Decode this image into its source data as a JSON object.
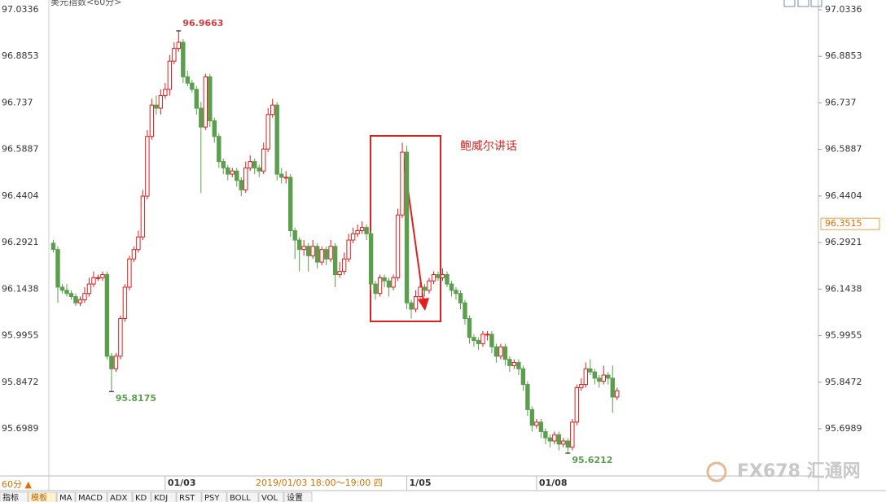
{
  "chart_data": {
    "type": "candlestick",
    "title": "美元指数<60分>",
    "ylim": [
      95.5486,
      97.0647
    ],
    "yticks": [
      97.0336,
      96.8853,
      96.737,
      96.5887,
      96.4404,
      96.2921,
      96.1438,
      95.9955,
      95.8472,
      95.6989
    ],
    "xlim": [
      -1,
      171
    ],
    "xticks": [
      {
        "value": 25,
        "label": "01/03"
      },
      {
        "value": 79,
        "label": "1/05"
      },
      {
        "value": 108,
        "label": "01/08"
      }
    ],
    "up_color": "#e02020",
    "down_color": "#5a9e4e",
    "last_price": 96.3515,
    "annotation": "鲍威尔讲话",
    "tooltip": "2019/01/03 18:00～19:00 四",
    "series": [
      {
        "open": [
          96.29,
          96.27,
          96.15,
          96.14,
          96.13,
          96.12,
          96.1,
          96.11,
          96.13,
          96.16,
          96.18,
          96.18,
          96.19,
          95.93,
          95.89,
          95.93,
          96.05,
          96.15,
          96.24,
          96.27,
          96.31,
          96.44,
          96.63,
          96.73,
          96.72,
          96.76,
          96.78,
          96.87,
          96.91,
          96.93,
          96.82,
          96.8,
          96.78,
          96.72,
          96.66,
          96.82,
          96.68,
          96.63,
          96.55,
          96.53,
          96.51,
          96.52,
          96.49,
          96.46,
          96.53,
          96.55,
          96.53,
          96.52,
          96.59,
          96.7,
          96.73,
          96.51,
          96.5,
          96.5,
          96.33,
          96.3,
          96.27,
          96.28,
          96.25,
          96.28,
          96.23,
          96.27,
          96.24,
          96.28,
          96.19,
          96.2,
          96.24,
          96.3,
          96.32,
          96.33,
          96.34,
          96.32,
          96.16,
          96.13,
          96.18,
          96.17,
          96.15,
          96.18,
          96.38,
          96.58,
          96.1,
          96.08,
          96.12,
          96.15,
          96.14,
          96.17,
          96.19,
          96.18,
          96.19,
          96.16,
          96.14,
          96.13,
          96.1,
          96.05,
          95.99,
          95.98,
          95.97,
          96.0,
          96.0,
          95.96,
          95.93,
          95.96,
          95.92,
          95.9,
          95.91,
          95.89,
          95.84,
          95.76,
          95.71,
          95.72,
          95.69,
          95.67,
          95.66,
          95.68,
          95.65,
          95.66,
          95.64,
          95.72,
          95.83,
          95.84,
          95.89,
          95.88,
          95.86,
          95.85,
          95.87,
          95.86,
          95.8
        ],
        "high": [
          96.3,
          96.28,
          96.16,
          96.16,
          96.14,
          96.13,
          96.12,
          96.15,
          96.18,
          96.2,
          96.19,
          96.2,
          96.2,
          95.94,
          95.94,
          96.06,
          96.16,
          96.25,
          96.28,
          96.33,
          96.46,
          96.65,
          96.75,
          96.76,
          96.78,
          96.8,
          96.89,
          96.93,
          96.9663,
          96.94,
          96.84,
          96.81,
          96.79,
          96.74,
          96.83,
          96.83,
          96.69,
          96.64,
          96.56,
          96.54,
          96.53,
          96.53,
          96.5,
          96.55,
          96.57,
          96.56,
          96.54,
          96.61,
          96.72,
          96.75,
          96.74,
          96.53,
          96.52,
          96.51,
          96.34,
          96.31,
          96.3,
          96.29,
          96.3,
          96.29,
          96.28,
          96.28,
          96.3,
          96.29,
          96.23,
          96.26,
          96.32,
          96.34,
          96.35,
          96.36,
          96.35,
          96.33,
          96.17,
          96.19,
          96.19,
          96.18,
          96.19,
          96.4,
          96.61,
          96.6,
          96.11,
          96.14,
          96.17,
          96.16,
          96.18,
          96.2,
          96.2,
          96.21,
          96.2,
          96.17,
          96.15,
          96.14,
          96.11,
          96.06,
          96.0,
          95.99,
          96.01,
          96.01,
          96.01,
          95.97,
          95.97,
          95.97,
          95.93,
          95.92,
          95.92,
          95.9,
          95.85,
          95.77,
          95.73,
          95.73,
          95.7,
          95.68,
          95.69,
          95.69,
          95.67,
          95.67,
          95.73,
          95.84,
          95.86,
          95.91,
          95.92,
          95.89,
          95.87,
          95.9,
          95.88,
          95.9,
          95.83
        ],
        "low": [
          96.26,
          96.1,
          96.13,
          96.12,
          96.11,
          96.09,
          96.09,
          96.1,
          96.12,
          96.15,
          96.17,
          96.17,
          95.92,
          95.8175,
          95.88,
          95.92,
          96.04,
          96.14,
          96.23,
          96.26,
          96.3,
          96.43,
          96.62,
          96.7,
          96.7,
          96.75,
          96.76,
          96.86,
          96.9,
          96.8,
          96.79,
          96.77,
          96.7,
          96.45,
          96.65,
          96.66,
          96.61,
          96.53,
          96.51,
          96.49,
          96.5,
          96.47,
          96.44,
          96.45,
          96.52,
          96.51,
          96.5,
          96.51,
          96.58,
          96.69,
          96.49,
          96.48,
          96.48,
          96.31,
          96.24,
          96.2,
          96.25,
          96.2,
          96.24,
          96.21,
          96.22,
          96.22,
          96.23,
          96.15,
          96.18,
          96.19,
          96.23,
          96.29,
          96.31,
          96.32,
          96.3,
          96.14,
          96.11,
          96.12,
          96.15,
          96.12,
          96.14,
          96.17,
          96.37,
          96.08,
          96.05,
          96.07,
          96.11,
          96.12,
          96.13,
          96.16,
          96.17,
          96.17,
          96.15,
          96.12,
          96.11,
          96.08,
          96.03,
          95.97,
          95.96,
          95.95,
          95.96,
          95.98,
          95.94,
          95.91,
          95.92,
          95.9,
          95.88,
          95.89,
          95.87,
          95.82,
          95.74,
          95.69,
          95.7,
          95.67,
          95.65,
          95.64,
          95.65,
          95.63,
          95.64,
          95.6212,
          95.63,
          95.71,
          95.82,
          95.83,
          95.87,
          95.84,
          95.83,
          95.84,
          95.84,
          95.75,
          95.79
        ],
        "close": [
          96.27,
          96.15,
          96.14,
          96.13,
          96.12,
          96.1,
          96.11,
          96.13,
          96.16,
          96.18,
          96.18,
          96.19,
          95.93,
          95.89,
          95.93,
          96.05,
          96.15,
          96.24,
          96.27,
          96.31,
          96.44,
          96.63,
          96.73,
          96.72,
          96.76,
          96.78,
          96.87,
          96.91,
          96.93,
          96.82,
          96.8,
          96.78,
          96.72,
          96.66,
          96.82,
          96.68,
          96.63,
          96.55,
          96.53,
          96.51,
          96.52,
          96.49,
          96.46,
          96.53,
          96.55,
          96.53,
          96.52,
          96.59,
          96.7,
          96.73,
          96.51,
          96.5,
          96.5,
          96.33,
          96.3,
          96.27,
          96.28,
          96.25,
          96.28,
          96.23,
          96.27,
          96.24,
          96.28,
          96.19,
          96.2,
          96.24,
          96.3,
          96.32,
          96.33,
          96.34,
          96.32,
          96.16,
          96.13,
          96.18,
          96.17,
          96.15,
          96.18,
          96.38,
          96.58,
          96.1,
          96.08,
          96.12,
          96.15,
          96.14,
          96.17,
          96.19,
          96.18,
          96.19,
          96.16,
          96.14,
          96.13,
          96.1,
          96.05,
          95.99,
          95.98,
          95.97,
          96.0,
          96.0,
          95.96,
          95.93,
          95.96,
          95.92,
          95.9,
          95.91,
          95.89,
          95.84,
          95.76,
          95.71,
          95.72,
          95.69,
          95.67,
          95.66,
          95.68,
          95.65,
          95.66,
          95.64,
          95.72,
          95.83,
          95.84,
          95.89,
          95.88,
          95.86,
          95.85,
          95.87,
          95.86,
          95.8,
          95.82
        ]
      }
    ]
  },
  "ui": {
    "period": "60分 ▲",
    "tabs": [
      "指标",
      "模板",
      "MA",
      "MACD",
      "ADX",
      "KD",
      "KDJ",
      "RST",
      "PSY",
      "BOLL",
      "VOL",
      "设置"
    ],
    "watermark": "FX678 汇通网"
  }
}
